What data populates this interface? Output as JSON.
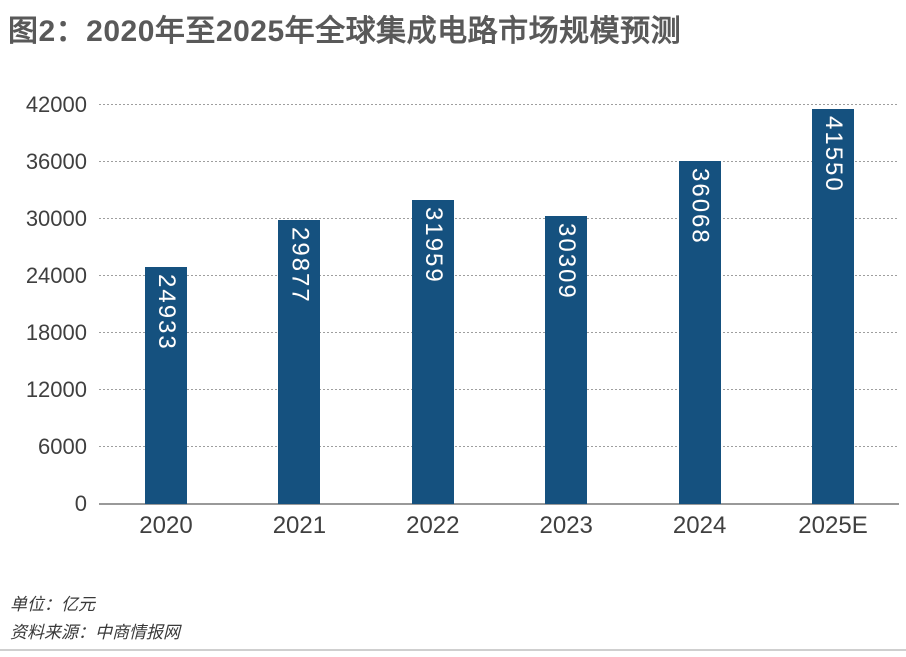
{
  "title": "图2：2020年至2025年全球集成电路市场规模预测",
  "chart_data": {
    "type": "bar",
    "title": "图2：2020年至2025年全球集成电路市场规模预测",
    "categories": [
      "2020",
      "2021",
      "2022",
      "2023",
      "2024",
      "2025E"
    ],
    "values": [
      24933,
      29877,
      31959,
      30309,
      36068,
      41550
    ],
    "xlabel": "",
    "ylabel": "",
    "ylim": [
      0,
      42000
    ],
    "yticks": [
      0,
      6000,
      12000,
      18000,
      24000,
      30000,
      36000,
      42000
    ],
    "grid": "horizontal-dotted",
    "legend": "none",
    "bar_color": "#15517f",
    "bar_value_label_color": "#ffffff",
    "bar_value_label_orientation": "vertical"
  },
  "footer": {
    "unit": "单位：亿元",
    "source": "资料来源：中商情报网"
  }
}
